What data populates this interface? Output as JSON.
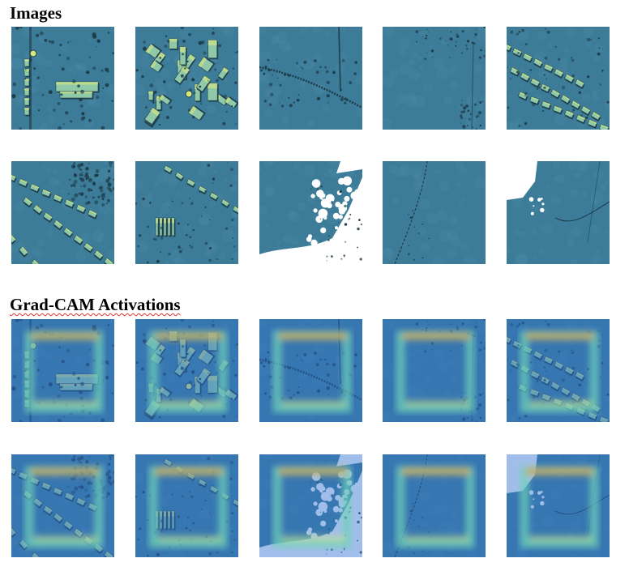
{
  "sections": {
    "images_title": "Images",
    "gradcam_title": "Grad-CAM Activations"
  },
  "tiles": [
    {
      "name": "image-1-1",
      "kind": "urban-large",
      "cam": false
    },
    {
      "name": "image-1-2",
      "kind": "urban-dense",
      "cam": false
    },
    {
      "name": "image-1-3",
      "kind": "road-diag",
      "cam": false
    },
    {
      "name": "image-1-4",
      "kind": "flat-sparse",
      "cam": false
    },
    {
      "name": "image-1-5",
      "kind": "rows",
      "cam": false
    },
    {
      "name": "image-2-1",
      "kind": "rows-curve",
      "cam": false
    },
    {
      "name": "image-2-2",
      "kind": "field-rows",
      "cam": false
    },
    {
      "name": "image-2-3",
      "kind": "nodata-bottom",
      "cam": false
    },
    {
      "name": "image-2-4",
      "kind": "flat-line",
      "cam": false
    },
    {
      "name": "image-2-5",
      "kind": "nodata-corner",
      "cam": false
    },
    {
      "name": "gradcam-1-1",
      "kind": "urban-large",
      "cam": true
    },
    {
      "name": "gradcam-1-2",
      "kind": "urban-dense",
      "cam": true
    },
    {
      "name": "gradcam-1-3",
      "kind": "road-diag",
      "cam": true
    },
    {
      "name": "gradcam-1-4",
      "kind": "flat-sparse",
      "cam": true
    },
    {
      "name": "gradcam-1-5",
      "kind": "rows",
      "cam": true
    },
    {
      "name": "gradcam-2-1",
      "kind": "rows-curve",
      "cam": true
    },
    {
      "name": "gradcam-2-2",
      "kind": "field-rows",
      "cam": true
    },
    {
      "name": "gradcam-2-3",
      "kind": "nodata-bottom",
      "cam": true
    },
    {
      "name": "gradcam-2-4",
      "kind": "flat-line",
      "cam": true
    },
    {
      "name": "gradcam-2-5",
      "kind": "nodata-corner",
      "cam": true
    }
  ],
  "colors": {
    "terrain": "#3c7c98",
    "terrain_dark": "#1c3a48",
    "building": "#8fc9a8",
    "highlight": "#d8e880",
    "cam_ring": "#6fd0b8",
    "cam_hot": "#e8a040",
    "cam_blue": "#2f6fd0"
  }
}
